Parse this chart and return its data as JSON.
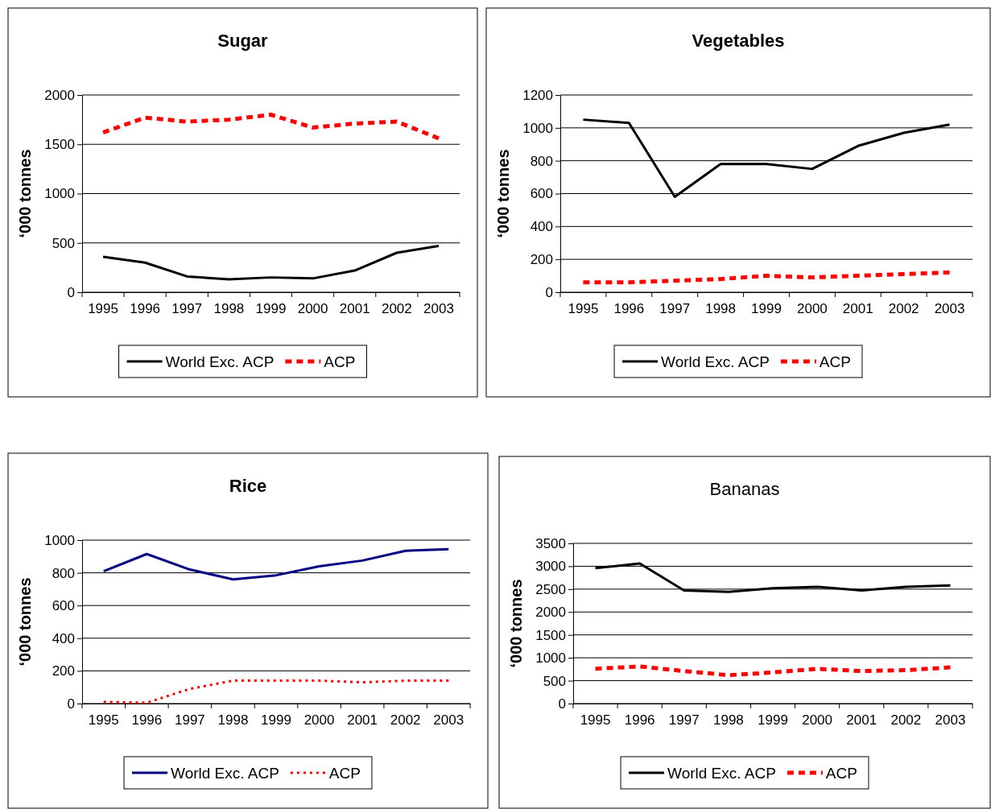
{
  "chart_data": [
    {
      "type": "line",
      "title": "Sugar",
      "ylabel": "‘000 tonnes",
      "categories": [
        "1995",
        "1996",
        "1997",
        "1998",
        "1999",
        "2000",
        "2001",
        "2002",
        "2003"
      ],
      "ylim": [
        0,
        2000
      ],
      "yticks": [
        0,
        500,
        1000,
        1500,
        2000
      ],
      "grid": "y",
      "legend": "bottom",
      "series": [
        {
          "name": "World Exc. ACP",
          "color": "#000000",
          "line_style": "solid",
          "values": [
            360,
            300,
            160,
            130,
            150,
            140,
            220,
            400,
            470
          ]
        },
        {
          "name": "ACP",
          "color": "#ff0000",
          "line_style": "dashed",
          "values": [
            1620,
            1770,
            1730,
            1750,
            1800,
            1670,
            1710,
            1730,
            1560
          ]
        }
      ]
    },
    {
      "type": "line",
      "title": "Vegetables",
      "ylabel": "‘000 tonnes",
      "categories": [
        "1995",
        "1996",
        "1997",
        "1998",
        "1999",
        "2000",
        "2001",
        "2002",
        "2003"
      ],
      "ylim": [
        0,
        1200
      ],
      "yticks": [
        0,
        200,
        400,
        600,
        800,
        1000,
        1200
      ],
      "grid": "y",
      "legend": "bottom",
      "series": [
        {
          "name": "World Exc. ACP",
          "color": "#000000",
          "line_style": "solid",
          "values": [
            1050,
            1030,
            580,
            780,
            780,
            750,
            890,
            970,
            1020
          ]
        },
        {
          "name": "ACP",
          "color": "#ff0000",
          "line_style": "dashed",
          "values": [
            60,
            60,
            70,
            80,
            100,
            90,
            100,
            110,
            120
          ]
        }
      ]
    },
    {
      "type": "line",
      "title": "Rice",
      "ylabel": "‘000 tonnes",
      "categories": [
        "1995",
        "1996",
        "1997",
        "1998",
        "1999",
        "2000",
        "2001",
        "2002",
        "2003"
      ],
      "ylim": [
        0,
        1000
      ],
      "yticks": [
        0,
        200,
        400,
        600,
        800,
        1000
      ],
      "grid": "y",
      "legend": "bottom",
      "series": [
        {
          "name": "World Exc. ACP",
          "color": "#000080",
          "line_style": "solid",
          "values": [
            810,
            915,
            820,
            760,
            785,
            840,
            875,
            935,
            945
          ]
        },
        {
          "name": "ACP",
          "color": "#ff0000",
          "line_style": "dotted",
          "values": [
            10,
            5,
            90,
            140,
            140,
            140,
            130,
            140,
            140
          ]
        }
      ]
    },
    {
      "type": "line",
      "title": "Bananas",
      "ylabel": "‘000 tonnes",
      "categories": [
        "1995",
        "1996",
        "1997",
        "1998",
        "1999",
        "2000",
        "2001",
        "2002",
        "2003"
      ],
      "ylim": [
        0,
        3500
      ],
      "yticks": [
        0,
        500,
        1000,
        1500,
        2000,
        2500,
        3000,
        3500
      ],
      "grid": "y",
      "legend": "bottom",
      "series": [
        {
          "name": "World Exc. ACP",
          "color": "#000000",
          "line_style": "solid",
          "values": [
            2960,
            3060,
            2470,
            2440,
            2520,
            2550,
            2470,
            2550,
            2580
          ]
        },
        {
          "name": "ACP",
          "color": "#ff0000",
          "line_style": "dashed",
          "values": [
            760,
            810,
            710,
            620,
            680,
            760,
            710,
            730,
            790
          ]
        }
      ]
    }
  ]
}
